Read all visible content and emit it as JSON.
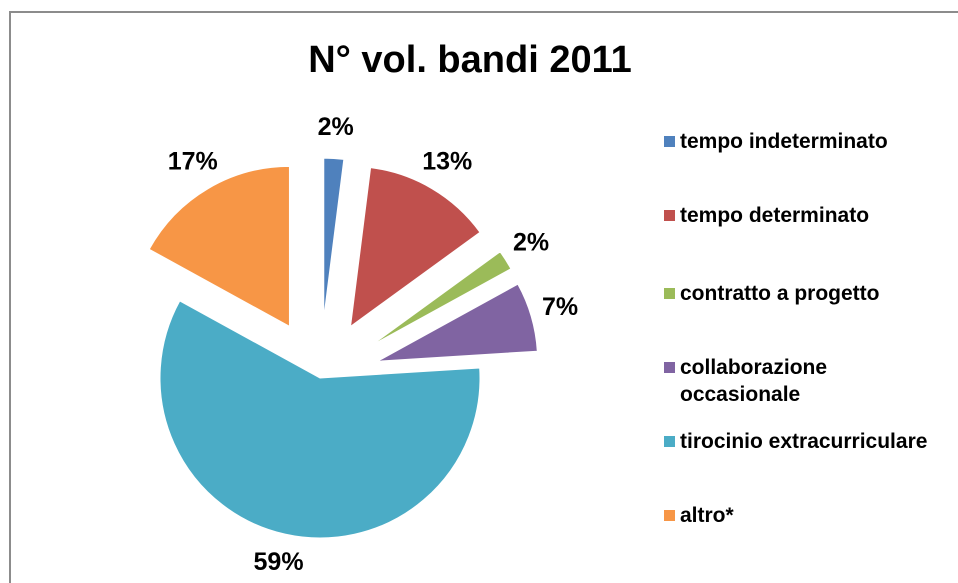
{
  "chart_data": {
    "type": "pie",
    "title": "N° vol. bandi 2011",
    "categories": [
      "tempo indeterminato",
      "tempo determinato",
      "contratto a progetto",
      "collaborazione occasionale",
      "tirocinio extracurriculare",
      "altro*"
    ],
    "values": [
      2,
      13,
      2,
      7,
      59,
      17
    ],
    "value_labels": [
      "2%",
      "13%",
      "2%",
      "7%",
      "59%",
      "17%"
    ],
    "colors": [
      "#4f81bd",
      "#c0504d",
      "#9bbb59",
      "#8064a2",
      "#4bacc6",
      "#f79646"
    ]
  }
}
